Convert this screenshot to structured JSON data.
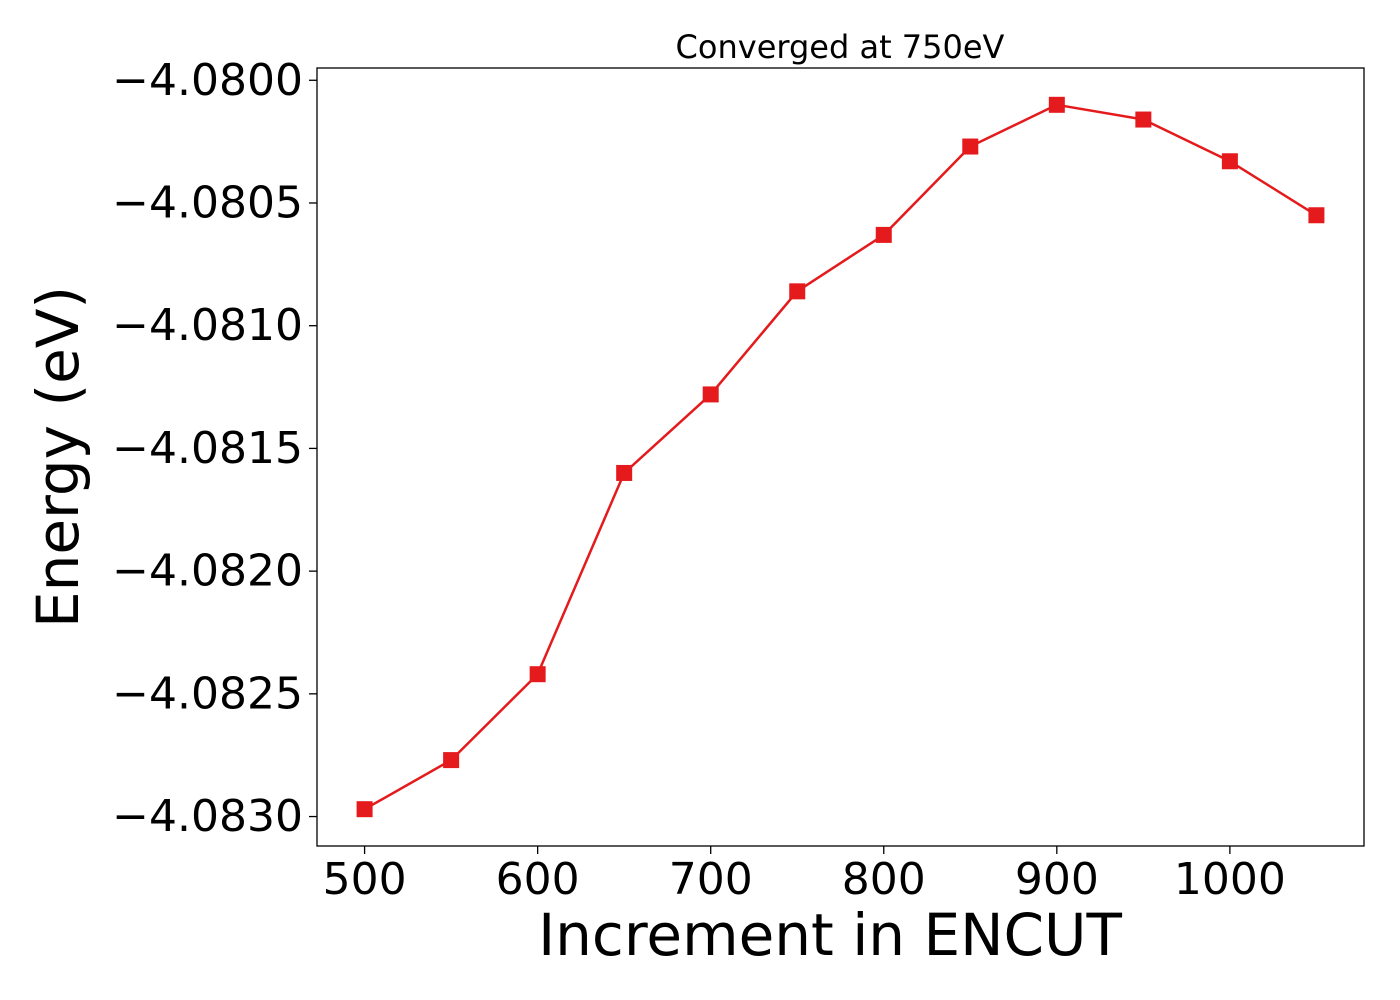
{
  "chart_data": {
    "type": "line",
    "title": "Converged at 750eV",
    "xlabel": "Increment in ENCUT",
    "ylabel": "Energy (eV)",
    "x": [
      500,
      550,
      600,
      650,
      700,
      750,
      800,
      850,
      900,
      950,
      1000,
      1050
    ],
    "series": [
      {
        "values": [
          -4.08297,
          -4.08277,
          -4.08242,
          -4.0816,
          -4.08128,
          -4.08086,
          -4.08063,
          -4.08027,
          -4.0801,
          -4.08016,
          -4.08033,
          -4.08055
        ],
        "color": "#e41a1c",
        "marker": "square"
      }
    ],
    "xticks": [
      500,
      600,
      700,
      800,
      900,
      1000
    ],
    "xtick_labels": [
      "500",
      "600",
      "700",
      "800",
      "900",
      "1000"
    ],
    "yticks": [
      -4.083,
      -4.0825,
      -4.082,
      -4.0815,
      -4.081,
      -4.0805,
      -4.08
    ],
    "ytick_labels": [
      "−4.0830",
      "−4.0825",
      "−4.0820",
      "−4.0815",
      "−4.0810",
      "−4.0805",
      "−4.0800"
    ],
    "xlim": [
      472.5,
      1077.5
    ],
    "ylim": [
      -4.08312,
      -4.07995
    ],
    "grid": false,
    "legend": false
  }
}
